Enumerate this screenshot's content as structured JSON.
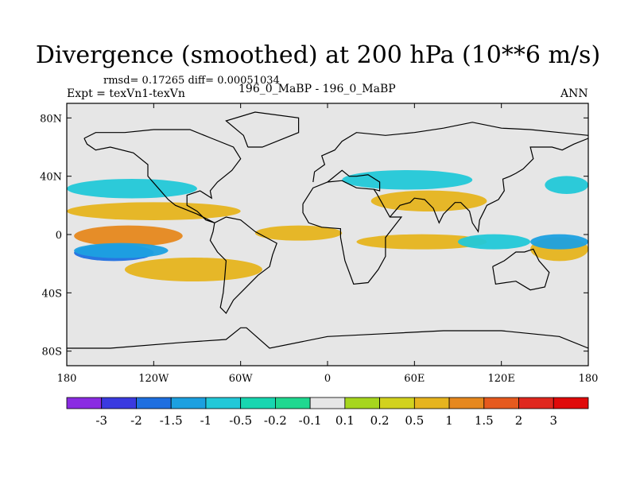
{
  "chart_data": {
    "type": "heatmap",
    "title": "Divergence (smoothed) at 200 hPa (10**6 m/s)",
    "stats": "rmsd= 0.17265 diff= 0.00051034",
    "expt_label": "Expt = texVn1-texVn",
    "cases_label": "196_0_MaBP - 196_0_MaBP",
    "season": "ANN",
    "x_axis": {
      "range": [
        -180,
        180
      ],
      "tick_values": [
        -180,
        -120,
        -60,
        0,
        60,
        120,
        180
      ],
      "tick_labels": [
        "180",
        "120W",
        "60W",
        "0",
        "60E",
        "120E",
        "180"
      ]
    },
    "y_axis": {
      "range": [
        -90,
        90
      ],
      "tick_values": [
        80,
        40,
        0,
        -40,
        -80
      ],
      "tick_labels": [
        "80N",
        "40N",
        "0",
        "40S",
        "80S"
      ]
    },
    "colorbar": {
      "labels": [
        "-3",
        "-2",
        "-1.5",
        "-1",
        "-0.5",
        "-0.2",
        "-0.1",
        "0.1",
        "0.2",
        "0.5",
        "1",
        "1.5",
        "2",
        "3"
      ],
      "colors": [
        "#8a2be2",
        "#3a3ae0",
        "#1f6fe0",
        "#1ca0e0",
        "#22c8d8",
        "#18d6b0",
        "#20d890",
        "#e6e6e6",
        "#a6d61e",
        "#d2d21e",
        "#e6b41e",
        "#e6881e",
        "#e65a1e",
        "#e0281e",
        "#e00a0a"
      ]
    },
    "background_color": "#e6e6e6",
    "features": [
      {
        "name": "equatorial-pacific-positive",
        "lon": [
          -175,
          -100
        ],
        "lat": [
          -6,
          4
        ],
        "class": "1"
      },
      {
        "name": "south-pacific-negative",
        "lon": [
          -175,
          -120
        ],
        "lat": [
          -16,
          -9
        ],
        "class": "-1.5"
      },
      {
        "name": "south-pacific-positive-band",
        "lon": [
          -140,
          -45
        ],
        "lat": [
          -30,
          -18
        ],
        "class": "0.5"
      },
      {
        "name": "north-pacific-negative-band",
        "lon": [
          -175,
          -110
        ],
        "lat": [
          -14,
          -8
        ],
        "class": "-1"
      },
      {
        "name": "north-positive-band",
        "lon": [
          -180,
          -60
        ],
        "lat": [
          12,
          20
        ],
        "class": "0.5"
      },
      {
        "name": "north-negative-band",
        "lon": [
          -180,
          -90
        ],
        "lat": [
          27,
          36
        ],
        "class": "-0.5"
      },
      {
        "name": "atlantic-positive",
        "lon": [
          -50,
          10
        ],
        "lat": [
          -2,
          4
        ],
        "class": "0.5"
      },
      {
        "name": "africa-indian-positive",
        "lon": [
          20,
          110
        ],
        "lat": [
          -8,
          -2
        ],
        "class": "0.5"
      },
      {
        "name": "indian-negative",
        "lon": [
          90,
          140
        ],
        "lat": [
          -8,
          -2
        ],
        "class": "-0.5"
      },
      {
        "name": "west-pacific-positive",
        "lon": [
          140,
          180
        ],
        "lat": [
          -16,
          -4
        ],
        "class": "0.5"
      },
      {
        "name": "west-pacific-negative",
        "lon": [
          140,
          180
        ],
        "lat": [
          -8,
          -2
        ],
        "class": "-1"
      },
      {
        "name": "asia-negative",
        "lon": [
          10,
          100
        ],
        "lat": [
          33,
          42
        ],
        "class": "-0.5"
      },
      {
        "name": "asia-positive",
        "lon": [
          30,
          110
        ],
        "lat": [
          18,
          28
        ],
        "class": "0.5"
      },
      {
        "name": "north-pacific-east-negative",
        "lon": [
          150,
          180
        ],
        "lat": [
          30,
          38
        ],
        "class": "-0.5"
      }
    ]
  }
}
